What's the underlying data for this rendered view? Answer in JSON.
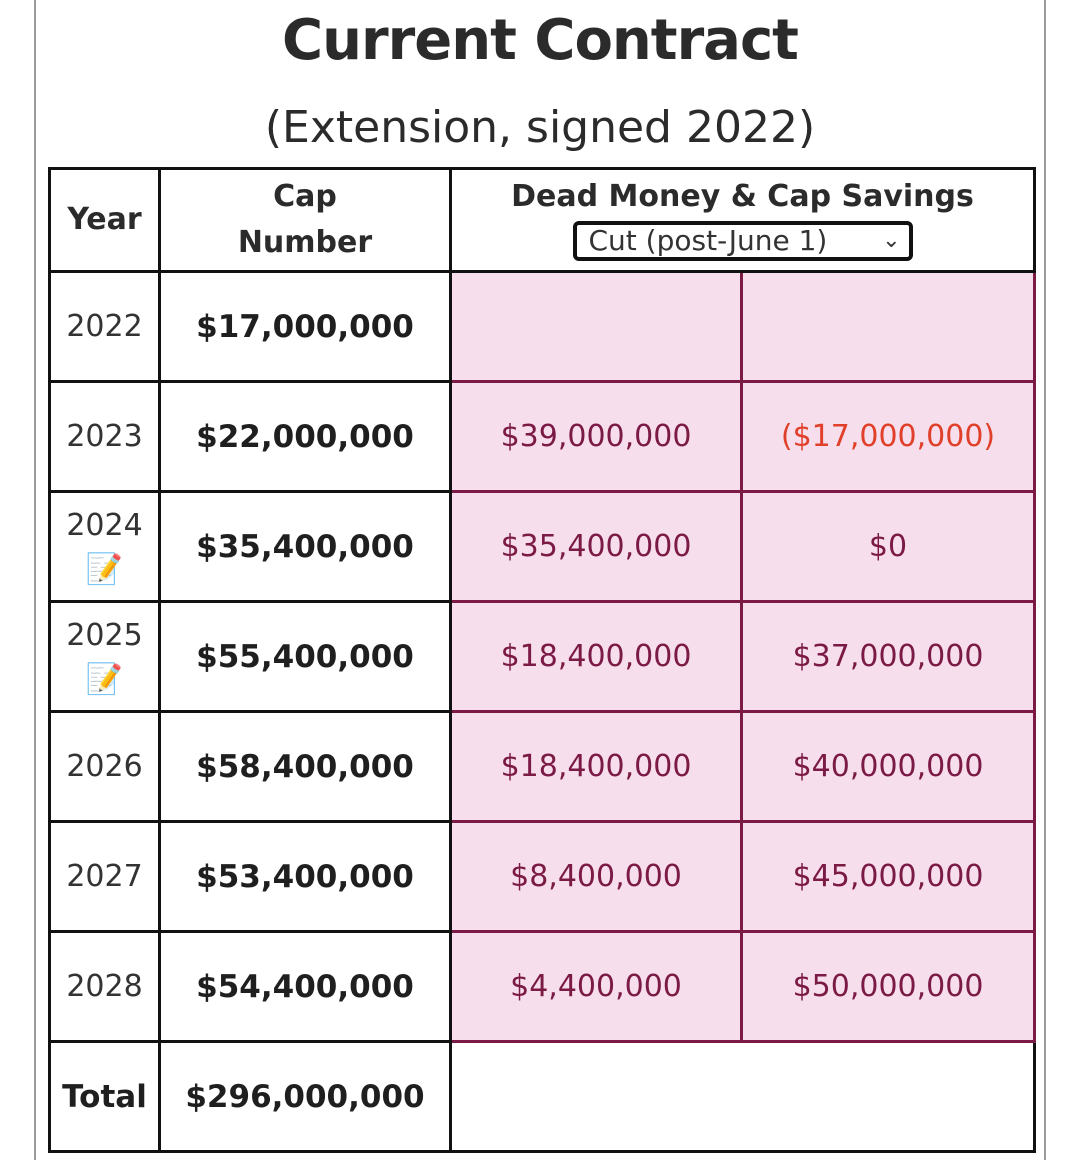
{
  "title": "Current Contract",
  "subtitle": "(Extension, signed 2022)",
  "table": {
    "headers": {
      "year": "Year",
      "cap_line1": "Cap",
      "cap_line2": "Number",
      "dead": "Dead Money & Cap Savings"
    },
    "dropdown": {
      "selected": "Cut (post-June 1)",
      "chevron": "chevron-down-icon"
    },
    "rows": [
      {
        "year": "2022",
        "cap": "$17,000,000",
        "dead": "",
        "savings": "",
        "note_icon": ""
      },
      {
        "year": "2023",
        "cap": "$22,000,000",
        "dead": "$39,000,000",
        "savings": "($17,000,000)",
        "note_icon": ""
      },
      {
        "year": "2024",
        "cap": "$35,400,000",
        "dead": "$35,400,000",
        "savings": "$0",
        "note_icon": "memo-icon"
      },
      {
        "year": "2025",
        "cap": "$55,400,000",
        "dead": "$18,400,000",
        "savings": "$37,000,000",
        "note_icon": "memo-icon"
      },
      {
        "year": "2026",
        "cap": "$58,400,000",
        "dead": "$18,400,000",
        "savings": "$40,000,000",
        "note_icon": ""
      },
      {
        "year": "2027",
        "cap": "$53,400,000",
        "dead": "$8,400,000",
        "savings": "$45,000,000",
        "note_icon": ""
      },
      {
        "year": "2028",
        "cap": "$54,400,000",
        "dead": "$4,400,000",
        "savings": "$50,000,000",
        "note_icon": ""
      }
    ],
    "total": {
      "label": "Total",
      "cap": "$296,000,000"
    }
  },
  "colors": {
    "accent": "#7a1a45",
    "highlight_bg": "#f7deec",
    "negative": "#e0402a"
  }
}
